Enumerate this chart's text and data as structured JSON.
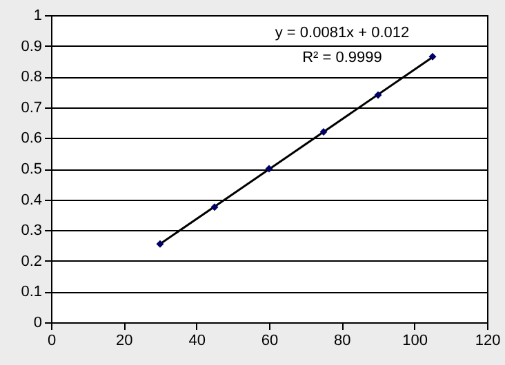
{
  "chart_data": {
    "type": "scatter",
    "series": [
      {
        "color": "#000066",
        "x": [
          30,
          45,
          60,
          75,
          90,
          105
        ],
        "values": [
          0.255,
          0.375,
          0.5,
          0.62,
          0.74,
          0.865
        ],
        "marker": "diamond"
      },
      {
        "type": "line",
        "color": "#000000",
        "x": [
          30,
          105
        ],
        "values": [
          0.255,
          0.863
        ],
        "marker": "none",
        "line_style": "solid"
      }
    ],
    "xlim": [
      0,
      120
    ],
    "xticks": [
      0,
      20,
      40,
      60,
      80,
      100,
      120
    ],
    "ylim": [
      0,
      1
    ],
    "yticks": [
      0,
      0.1,
      0.2,
      0.3,
      0.4,
      0.5,
      0.6,
      0.7,
      0.8,
      0.9,
      1
    ],
    "grid": "y",
    "annotations": [
      "y = 0.0081x + 0.012",
      "R² = 0.9999"
    ]
  }
}
